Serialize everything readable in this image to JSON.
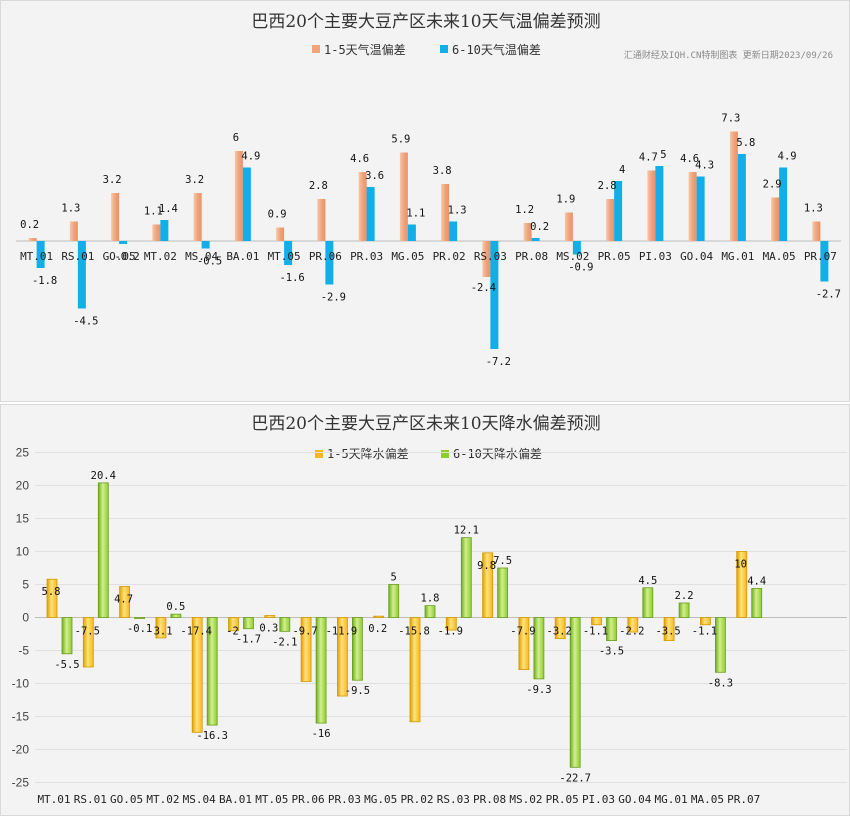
{
  "colors": {
    "temp_s1": "#f0a47a",
    "temp_s2": "#11aee8",
    "rain_s1": "#f6b81e",
    "rain_s2": "#8fcc30"
  },
  "chart_data": [
    {
      "type": "bar",
      "title": "巴西20个主要大豆产区未来10天气温偏差预测",
      "source_note": "汇通财经及IQH.CN特制图表 更新日期2023/09/26",
      "legend_position": "top",
      "grid": false,
      "categories": [
        "MT.01",
        "RS.01",
        "GO.05",
        "MT.02",
        "MS.04",
        "BA.01",
        "MT.05",
        "PR.06",
        "PR.03",
        "MG.05",
        "PR.02",
        "RS.03",
        "PR.08",
        "MS.02",
        "PR.05",
        "PI.03",
        "GO.04",
        "MG.01",
        "MA.05",
        "PR.07"
      ],
      "series": [
        {
          "name": "1-5天气温偏差",
          "values": [
            0.2,
            1.3,
            3.2,
            1.1,
            3.2,
            6,
            0.9,
            2.8,
            4.6,
            5.9,
            3.8,
            -2.4,
            1.2,
            1.9,
            2.8,
            4.7,
            4.6,
            7.3,
            2.9,
            1.3
          ]
        },
        {
          "name": "6-10天气温偏差",
          "values": [
            -1.8,
            -4.5,
            -0.2,
            1.4,
            -0.5,
            4.9,
            -1.6,
            -2.9,
            3.6,
            1.1,
            1.3,
            -7.2,
            0.2,
            -0.9,
            4,
            5,
            4.3,
            5.8,
            4.9,
            -2.7
          ]
        }
      ],
      "ylim": [
        -8,
        8
      ]
    },
    {
      "type": "bar",
      "title": "巴西20个主要大豆产区未来10天降水偏差预测",
      "legend_position": "top",
      "grid": true,
      "categories": [
        "MT.01",
        "RS.01",
        "GO.05",
        "MT.02",
        "MS.04",
        "BA.01",
        "MT.05",
        "PR.06",
        "PR.03",
        "MG.05",
        "PR.02",
        "RS.03",
        "PR.08",
        "MS.02",
        "PR.05",
        "PI.03",
        "GO.04",
        "MG.01",
        "MA.05",
        "PR.07"
      ],
      "series": [
        {
          "name": "1-5天降水偏差",
          "values": [
            5.8,
            -7.5,
            4.7,
            -3.1,
            -17.4,
            -2,
            0.3,
            -9.7,
            -11.9,
            0.2,
            -15.8,
            -1.9,
            9.8,
            -7.9,
            -3.2,
            -1.1,
            -2.2,
            -3.5,
            -1.1,
            10
          ]
        },
        {
          "name": "6-10天降水偏差",
          "values": [
            -5.5,
            20.4,
            -0.1,
            0.5,
            -16.3,
            -1.7,
            -2.1,
            -16,
            -9.5,
            5,
            1.8,
            12.1,
            7.5,
            -9.3,
            -22.7,
            -3.5,
            4.5,
            2.2,
            -8.3,
            4.4
          ]
        }
      ],
      "ylim": [
        -25,
        25
      ],
      "yticks": [
        25,
        20,
        15,
        10,
        5,
        0,
        -5,
        -10,
        -15,
        -20,
        -25
      ]
    }
  ]
}
